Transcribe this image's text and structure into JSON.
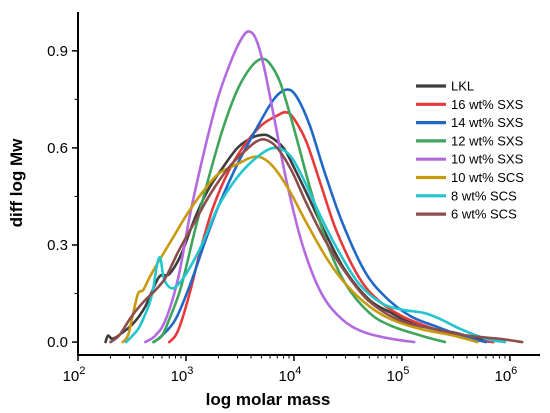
{
  "chart_data": {
    "type": "line",
    "xlabel": "log molar mass",
    "ylabel": "diff log Mw",
    "xscale": "log",
    "xlim": [
      100,
      1900000
    ],
    "ylim": [
      -0.04,
      1.02
    ],
    "x_ticks": [
      {
        "value": 100,
        "base": "10",
        "exp": "2"
      },
      {
        "value": 1000,
        "base": "10",
        "exp": "3"
      },
      {
        "value": 10000,
        "base": "10",
        "exp": "4"
      },
      {
        "value": 100000,
        "base": "10",
        "exp": "5"
      },
      {
        "value": 1000000,
        "base": "10",
        "exp": "6"
      }
    ],
    "y_ticks": [
      {
        "value": 0.0,
        "label": "0.0"
      },
      {
        "value": 0.3,
        "label": "0.3"
      },
      {
        "value": 0.6,
        "label": "0.6"
      },
      {
        "value": 0.9,
        "label": "0.9"
      }
    ],
    "legend_position": "right",
    "series": [
      {
        "name": "LKL",
        "color": "#3d3d3d",
        "points": [
          [
            180,
            0
          ],
          [
            190,
            0.02
          ],
          [
            210,
            0.01
          ],
          [
            260,
            0.03
          ],
          [
            330,
            0.06
          ],
          [
            420,
            0.11
          ],
          [
            560,
            0.2
          ],
          [
            700,
            0.21
          ],
          [
            900,
            0.27
          ],
          [
            1200,
            0.38
          ],
          [
            1600,
            0.47
          ],
          [
            2200,
            0.54
          ],
          [
            3000,
            0.6
          ],
          [
            4000,
            0.63
          ],
          [
            5000,
            0.64
          ],
          [
            6000,
            0.635
          ],
          [
            8000,
            0.6
          ],
          [
            10000,
            0.54
          ],
          [
            14000,
            0.44
          ],
          [
            20000,
            0.33
          ],
          [
            30000,
            0.22
          ],
          [
            50000,
            0.13
          ],
          [
            80000,
            0.09
          ],
          [
            120000,
            0.06
          ],
          [
            200000,
            0.04
          ],
          [
            300000,
            0.03
          ],
          [
            500000,
            0.01
          ],
          [
            700000,
            0
          ]
        ]
      },
      {
        "name": "16 wt% SXS",
        "color": "#e8393a",
        "points": [
          [
            700,
            0
          ],
          [
            800,
            0.02
          ],
          [
            900,
            0.06
          ],
          [
            1100,
            0.16
          ],
          [
            1400,
            0.3
          ],
          [
            1800,
            0.42
          ],
          [
            2500,
            0.53
          ],
          [
            3500,
            0.61
          ],
          [
            5000,
            0.67
          ],
          [
            7000,
            0.7
          ],
          [
            8500,
            0.71
          ],
          [
            10000,
            0.69
          ],
          [
            13000,
            0.62
          ],
          [
            18000,
            0.48
          ],
          [
            25000,
            0.34
          ],
          [
            40000,
            0.2
          ],
          [
            60000,
            0.13
          ],
          [
            100000,
            0.08
          ],
          [
            200000,
            0.04
          ],
          [
            400000,
            0.01
          ],
          [
            700000,
            0
          ]
        ]
      },
      {
        "name": "14 wt% SXS",
        "color": "#2068c8",
        "points": [
          [
            500,
            0
          ],
          [
            600,
            0.02
          ],
          [
            800,
            0.07
          ],
          [
            1100,
            0.18
          ],
          [
            1500,
            0.31
          ],
          [
            2000,
            0.42
          ],
          [
            3000,
            0.55
          ],
          [
            4500,
            0.66
          ],
          [
            6500,
            0.75
          ],
          [
            8500,
            0.78
          ],
          [
            10500,
            0.76
          ],
          [
            14000,
            0.67
          ],
          [
            19000,
            0.53
          ],
          [
            28000,
            0.37
          ],
          [
            45000,
            0.22
          ],
          [
            70000,
            0.14
          ],
          [
            120000,
            0.08
          ],
          [
            200000,
            0.05
          ],
          [
            350000,
            0.02
          ],
          [
            600000,
            0
          ]
        ]
      },
      {
        "name": "12 wt% SXS",
        "color": "#3ea55a",
        "points": [
          [
            500,
            0
          ],
          [
            600,
            0.02
          ],
          [
            700,
            0.07
          ],
          [
            900,
            0.17
          ],
          [
            1200,
            0.34
          ],
          [
            1600,
            0.5
          ],
          [
            2200,
            0.66
          ],
          [
            3000,
            0.78
          ],
          [
            4000,
            0.85
          ],
          [
            5000,
            0.875
          ],
          [
            6000,
            0.86
          ],
          [
            7500,
            0.8
          ],
          [
            10000,
            0.66
          ],
          [
            14000,
            0.48
          ],
          [
            20000,
            0.31
          ],
          [
            30000,
            0.18
          ],
          [
            50000,
            0.09
          ],
          [
            80000,
            0.05
          ],
          [
            150000,
            0.02
          ],
          [
            250000,
            0
          ]
        ]
      },
      {
        "name": "10 wt% SXS",
        "color": "#b36ae0",
        "points": [
          [
            420,
            0
          ],
          [
            520,
            0.02
          ],
          [
            650,
            0.07
          ],
          [
            850,
            0.2
          ],
          [
            1100,
            0.4
          ],
          [
            1500,
            0.6
          ],
          [
            2000,
            0.76
          ],
          [
            2700,
            0.88
          ],
          [
            3300,
            0.94
          ],
          [
            3800,
            0.96
          ],
          [
            4400,
            0.94
          ],
          [
            5200,
            0.86
          ],
          [
            6500,
            0.7
          ],
          [
            8500,
            0.5
          ],
          [
            12000,
            0.3
          ],
          [
            18000,
            0.15
          ],
          [
            28000,
            0.07
          ],
          [
            45000,
            0.03
          ],
          [
            80000,
            0.01
          ],
          [
            130000,
            0
          ]
        ]
      },
      {
        "name": "10 wt% SCS",
        "color": "#c99a0e",
        "points": [
          [
            260,
            0
          ],
          [
            290,
            0.02
          ],
          [
            320,
            0.08
          ],
          [
            360,
            0.15
          ],
          [
            400,
            0.16
          ],
          [
            460,
            0.2
          ],
          [
            560,
            0.25
          ],
          [
            750,
            0.32
          ],
          [
            1000,
            0.39
          ],
          [
            1400,
            0.46
          ],
          [
            2000,
            0.52
          ],
          [
            3000,
            0.55
          ],
          [
            4000,
            0.57
          ],
          [
            5000,
            0.57
          ],
          [
            6500,
            0.54
          ],
          [
            9000,
            0.47
          ],
          [
            13000,
            0.37
          ],
          [
            20000,
            0.26
          ],
          [
            30000,
            0.18
          ],
          [
            50000,
            0.11
          ],
          [
            80000,
            0.07
          ],
          [
            150000,
            0.04
          ],
          [
            300000,
            0.02
          ],
          [
            500000,
            0
          ]
        ]
      },
      {
        "name": "8 wt% SCS",
        "color": "#22c6d1",
        "points": [
          [
            280,
            0
          ],
          [
            320,
            0.02
          ],
          [
            360,
            0.04
          ],
          [
            400,
            0.07
          ],
          [
            460,
            0.12
          ],
          [
            500,
            0.17
          ],
          [
            540,
            0.24
          ],
          [
            580,
            0.26
          ],
          [
            620,
            0.2
          ],
          [
            700,
            0.17
          ],
          [
            800,
            0.17
          ],
          [
            1000,
            0.21
          ],
          [
            1400,
            0.3
          ],
          [
            2000,
            0.42
          ],
          [
            3000,
            0.51
          ],
          [
            4500,
            0.57
          ],
          [
            6500,
            0.6
          ],
          [
            9000,
            0.58
          ],
          [
            12000,
            0.51
          ],
          [
            17000,
            0.4
          ],
          [
            25000,
            0.29
          ],
          [
            40000,
            0.18
          ],
          [
            65000,
            0.12
          ],
          [
            100000,
            0.1
          ],
          [
            160000,
            0.09
          ],
          [
            230000,
            0.07
          ],
          [
            350000,
            0.04
          ],
          [
            600000,
            0.01
          ],
          [
            900000,
            0
          ]
        ]
      },
      {
        "name": "6 wt% SCS",
        "color": "#8c4d4d",
        "points": [
          [
            200,
            0
          ],
          [
            240,
            0.02
          ],
          [
            300,
            0.07
          ],
          [
            350,
            0.1
          ],
          [
            420,
            0.13
          ],
          [
            520,
            0.16
          ],
          [
            650,
            0.2
          ],
          [
            850,
            0.28
          ],
          [
            1200,
            0.37
          ],
          [
            1700,
            0.46
          ],
          [
            2500,
            0.54
          ],
          [
            3500,
            0.59
          ],
          [
            4500,
            0.62
          ],
          [
            5500,
            0.625
          ],
          [
            7000,
            0.6
          ],
          [
            9500,
            0.53
          ],
          [
            13000,
            0.43
          ],
          [
            19000,
            0.32
          ],
          [
            28000,
            0.23
          ],
          [
            45000,
            0.14
          ],
          [
            70000,
            0.09
          ],
          [
            110000,
            0.06
          ],
          [
            200000,
            0.04
          ],
          [
            400000,
            0.02
          ],
          [
            800000,
            0.01
          ],
          [
            1300000,
            0
          ]
        ]
      }
    ]
  }
}
